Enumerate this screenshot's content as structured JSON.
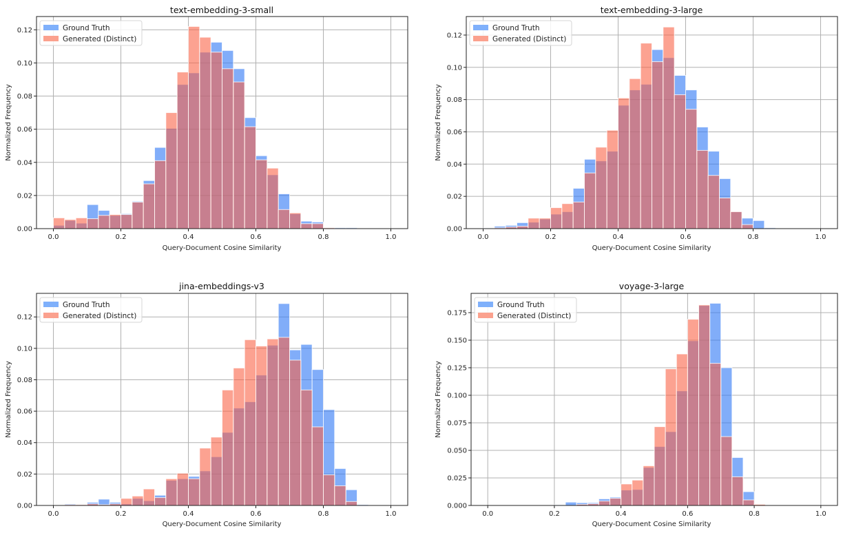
{
  "chart_data": [
    {
      "type": "bar",
      "title": "text-embedding-3-small",
      "xlabel": "Query-Document Cosine Similarity",
      "ylabel": "Normalized Frequency",
      "xlim": [
        -0.05,
        1.05
      ],
      "ylim": [
        0,
        0.128
      ],
      "xticks": [
        "0.0",
        "0.2",
        "0.4",
        "0.6",
        "0.8",
        "1.0"
      ],
      "yticks": [
        "0.00",
        "0.02",
        "0.04",
        "0.06",
        "0.08",
        "0.10",
        "0.12"
      ],
      "ytick_values": [
        0,
        0.02,
        0.04,
        0.06,
        0.08,
        0.1,
        0.12
      ],
      "grid": true,
      "legend": "top-left",
      "bin_range": [
        0,
        1
      ],
      "bins": 30,
      "series": [
        {
          "name": "Ground Truth",
          "color": "#7fb0fb",
          "values": [
            0.002,
            0.005,
            0.0033,
            0.0145,
            0.011,
            0.008,
            0.009,
            0.0165,
            0.029,
            0.049,
            0.0605,
            0.087,
            0.094,
            0.1065,
            0.1125,
            0.1075,
            0.0965,
            0.067,
            0.044,
            0.0325,
            0.021,
            0.009,
            0.0045,
            0.004,
            0.0005,
            0.0005,
            0.0005,
            0,
            0,
            0
          ]
        },
        {
          "name": "Generated (Distinct)",
          "color": "#fba18e",
          "values": [
            0.0065,
            0.0055,
            0.0065,
            0.006,
            0.008,
            0.0085,
            0.0085,
            0.016,
            0.027,
            0.041,
            0.07,
            0.0945,
            0.122,
            0.1155,
            0.1065,
            0.0965,
            0.0885,
            0.0615,
            0.0415,
            0.0365,
            0.0115,
            0.0095,
            0.003,
            0.003,
            0.0005,
            0,
            0,
            0,
            0,
            0
          ]
        }
      ]
    },
    {
      "type": "bar",
      "title": "text-embedding-3-large",
      "xlabel": "Query-Document Cosine Similarity",
      "ylabel": "Normalized Frequency",
      "xlim": [
        -0.05,
        1.05
      ],
      "ylim": [
        0,
        0.1315
      ],
      "xticks": [
        "0.0",
        "0.2",
        "0.4",
        "0.6",
        "0.8",
        "1.0"
      ],
      "yticks": [
        "0.00",
        "0.02",
        "0.04",
        "0.06",
        "0.08",
        "0.10",
        "0.12"
      ],
      "ytick_values": [
        0,
        0.02,
        0.04,
        0.06,
        0.08,
        0.1,
        0.12
      ],
      "grid": true,
      "legend": "top-left",
      "bin_range": [
        0,
        1
      ],
      "bins": 30,
      "series": [
        {
          "name": "Ground Truth",
          "color": "#7fb0fb",
          "values": [
            0.0003,
            0.0015,
            0.002,
            0.0037,
            0.004,
            0.006,
            0.009,
            0.0105,
            0.025,
            0.043,
            0.042,
            0.048,
            0.0765,
            0.086,
            0.0895,
            0.111,
            0.106,
            0.095,
            0.086,
            0.063,
            0.048,
            0.031,
            0.0105,
            0.0065,
            0.005,
            0.0005,
            0,
            0,
            0,
            0
          ]
        },
        {
          "name": "Generated (Distinct)",
          "color": "#fba18e",
          "values": [
            0,
            0.0005,
            0.001,
            0.0015,
            0.0065,
            0.0065,
            0.013,
            0.0155,
            0.0165,
            0.0345,
            0.0505,
            0.061,
            0.081,
            0.093,
            0.115,
            0.1035,
            0.125,
            0.083,
            0.074,
            0.0485,
            0.033,
            0.019,
            0.0105,
            0.0025,
            0,
            0,
            0,
            0,
            0,
            0
          ]
        }
      ]
    },
    {
      "type": "bar",
      "title": "jina-embeddings-v3",
      "xlabel": "Query-Document Cosine Similarity",
      "ylabel": "Normalized Frequency",
      "xlim": [
        -0.05,
        1.05
      ],
      "ylim": [
        0,
        0.135
      ],
      "xticks": [
        "0.0",
        "0.2",
        "0.4",
        "0.6",
        "0.8",
        "1.0"
      ],
      "yticks": [
        "0.00",
        "0.02",
        "0.04",
        "0.06",
        "0.08",
        "0.10",
        "0.12"
      ],
      "ytick_values": [
        0,
        0.02,
        0.04,
        0.06,
        0.08,
        0.1,
        0.12
      ],
      "grid": true,
      "legend": "top-left",
      "bin_range": [
        0,
        1
      ],
      "bins": 30,
      "series": [
        {
          "name": "Ground Truth",
          "color": "#7fb0fb",
          "values": [
            0,
            0.001,
            0.0005,
            0.002,
            0.004,
            0.002,
            0.001,
            0.0045,
            0.003,
            0.0065,
            0.016,
            0.017,
            0.0185,
            0.022,
            0.031,
            0.0465,
            0.062,
            0.066,
            0.083,
            0.102,
            0.1285,
            0.099,
            0.1025,
            0.0865,
            0.061,
            0.0235,
            0.01,
            0.0005,
            0,
            0
          ]
        },
        {
          "name": "Generated (Distinct)",
          "color": "#fba18e",
          "values": [
            0,
            0.0005,
            0.0005,
            0.001,
            0.0005,
            0.001,
            0.0045,
            0.006,
            0.0105,
            0.005,
            0.017,
            0.0205,
            0.017,
            0.0365,
            0.0435,
            0.0735,
            0.0875,
            0.1055,
            0.1015,
            0.106,
            0.107,
            0.0925,
            0.0735,
            0.05,
            0.0195,
            0.0125,
            0.0025,
            0,
            0,
            0
          ]
        }
      ]
    },
    {
      "type": "bar",
      "title": "voyage-3-large",
      "xlabel": "Query-Document Cosine Similarity",
      "ylabel": "Normalized Frequency",
      "xlim": [
        -0.05,
        1.05
      ],
      "ylim": [
        0,
        0.1925
      ],
      "xticks": [
        "0.0",
        "0.2",
        "0.4",
        "0.6",
        "0.8",
        "1.0"
      ],
      "yticks": [
        "0.000",
        "0.025",
        "0.050",
        "0.075",
        "0.100",
        "0.125",
        "0.150",
        "0.175"
      ],
      "ytick_values": [
        0,
        0.025,
        0.05,
        0.075,
        0.1,
        0.125,
        0.15,
        0.175
      ],
      "grid": true,
      "legend": "top-left",
      "bin_range": [
        0,
        1
      ],
      "bins": 30,
      "series": [
        {
          "name": "Ground Truth",
          "color": "#7fb0fb",
          "values": [
            0,
            0,
            0,
            0,
            0,
            0,
            0.0005,
            0.003,
            0.0025,
            0.0025,
            0.006,
            0.0075,
            0.014,
            0.0145,
            0.0345,
            0.0535,
            0.067,
            0.104,
            0.1495,
            0.1815,
            0.1835,
            0.125,
            0.0435,
            0.0125,
            0,
            0,
            0,
            0,
            0,
            0
          ]
        },
        {
          "name": "Generated (Distinct)",
          "color": "#fba18e",
          "values": [
            0,
            0,
            0,
            0,
            0,
            0,
            0,
            0,
            0.001,
            0.0015,
            0.004,
            0.0065,
            0.0195,
            0.023,
            0.036,
            0.0715,
            0.124,
            0.1375,
            0.169,
            0.182,
            0.129,
            0.0625,
            0.026,
            0.005,
            0.001,
            0,
            0,
            0,
            0,
            0
          ]
        }
      ]
    }
  ]
}
